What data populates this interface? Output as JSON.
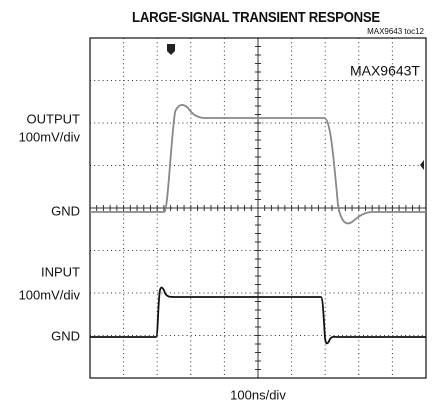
{
  "title": "LARGE-SIGNAL TRANSIENT RESPONSE",
  "note": "MAX9643 toc12",
  "device": "MAX9643T",
  "output": {
    "label": "OUTPUT",
    "scale": "100mV/div",
    "ground": "GND"
  },
  "input": {
    "label": "INPUT",
    "scale": "100mV/div",
    "ground": "GND"
  },
  "time_scale": "100ns/div"
}
